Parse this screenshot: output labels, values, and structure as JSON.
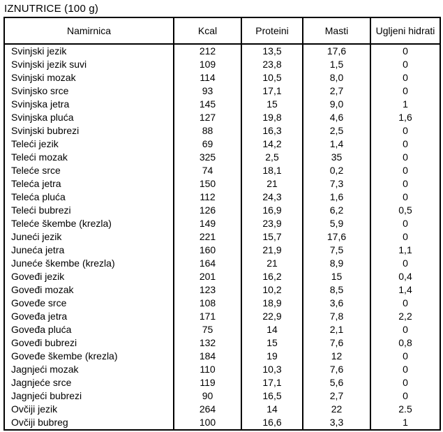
{
  "title": "IZNUTRICE (100 g)",
  "table": {
    "columns": [
      "Namirnica",
      "Kcal",
      "Proteini",
      "Masti",
      "Ugljeni hidrati"
    ],
    "rows": [
      [
        "Svinjski jezik",
        "212",
        "13,5",
        "17,6",
        "0"
      ],
      [
        "Svinjski jezik suvi",
        "109",
        "23,8",
        "1,5",
        "0"
      ],
      [
        "Svinjski mozak",
        "114",
        "10,5",
        "8,0",
        "0"
      ],
      [
        "Svinjsko srce",
        "93",
        "17,1",
        "2,7",
        "0"
      ],
      [
        "Svinjska jetra",
        "145",
        "15",
        "9,0",
        "1"
      ],
      [
        "Svinjska pluća",
        "127",
        "19,8",
        "4,6",
        "1,6"
      ],
      [
        "Svinjski bubrezi",
        "88",
        "16,3",
        "2,5",
        "0"
      ],
      [
        "Teleći jezik",
        "69",
        "14,2",
        "1,4",
        "0"
      ],
      [
        "Teleći mozak",
        "325",
        "2,5",
        "35",
        "0"
      ],
      [
        "Teleće srce",
        "74",
        "18,1",
        "0,2",
        "0"
      ],
      [
        "Teleća jetra",
        "150",
        "21",
        "7,3",
        "0"
      ],
      [
        "Teleća pluća",
        "112",
        "24,3",
        "1,6",
        "0"
      ],
      [
        "Teleći bubrezi",
        "126",
        "16,9",
        "6,2",
        "0,5"
      ],
      [
        "Teleće škembe (krezla)",
        "149",
        "23,9",
        "5,9",
        "0"
      ],
      [
        "Juneći jezik",
        "221",
        "15,7",
        "17,6",
        "0"
      ],
      [
        "Juneća jetra",
        "160",
        "21,9",
        "7,5",
        "1,1"
      ],
      [
        "Juneće škembe (krezla)",
        "164",
        "21",
        "8,9",
        "0"
      ],
      [
        "Goveđi jezik",
        "201",
        "16,2",
        "15",
        "0,4"
      ],
      [
        "Goveđi mozak",
        "123",
        "10,2",
        "8,5",
        "1,4"
      ],
      [
        "Goveđe srce",
        "108",
        "18,9",
        "3,6",
        "0"
      ],
      [
        "Goveđa jetra",
        "171",
        "22,9",
        "7,8",
        "2,2"
      ],
      [
        "Goveđa pluća",
        "75",
        "14",
        "2,1",
        "0"
      ],
      [
        "Goveđi bubrezi",
        "132",
        "15",
        "7,6",
        "0,8"
      ],
      [
        "Goveđe škembe (krezla)",
        "184",
        "19",
        "12",
        "0"
      ],
      [
        "Jagnjeći mozak",
        "110",
        "10,3",
        "7,6",
        "0"
      ],
      [
        "Jagnjeće srce",
        "119",
        "17,1",
        "5,6",
        "0"
      ],
      [
        "Jagnjeći bubrezi",
        "90",
        "16,5",
        "2,7",
        "0"
      ],
      [
        "Ovčiji jezik",
        "264",
        "14",
        "22",
        "2.5"
      ],
      [
        "Ovčiji bubreg",
        "100",
        "16,6",
        "3,3",
        "1"
      ]
    ]
  }
}
